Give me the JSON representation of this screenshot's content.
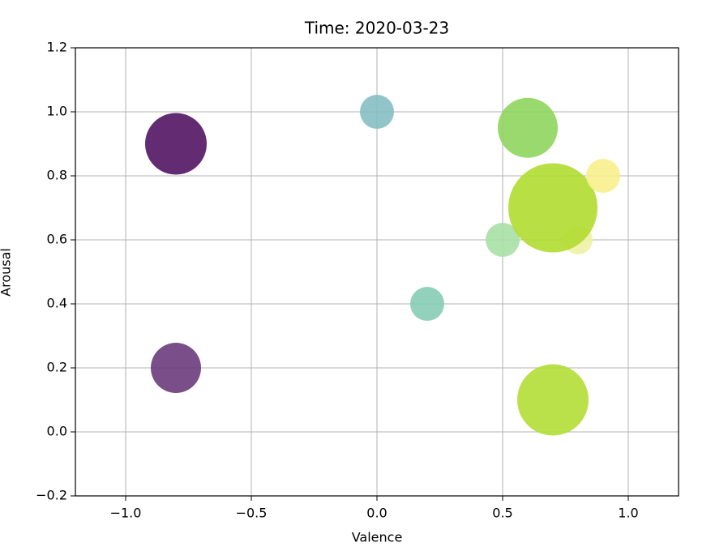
{
  "chart_data": {
    "type": "scatter",
    "title": "Time: 2020-03-23",
    "x_label": "Valence",
    "y_label": "Arousal",
    "x": [
      -0.8,
      -0.8,
      0.0,
      0.2,
      0.5,
      0.6,
      0.8,
      0.7,
      0.9,
      0.7
    ],
    "values": [
      0.9,
      0.2,
      1.0,
      0.4,
      0.6,
      0.95,
      0.6,
      0.7,
      0.8,
      0.1
    ],
    "sizes": [
      1444,
      961,
      441,
      441,
      441,
      1369,
      324,
      3025,
      441,
      1936
    ],
    "colors": [
      "#521463",
      "#6c3c7c",
      "#86bfc4",
      "#86cdb6",
      "#a9e0a6",
      "#8ed55e",
      "#eef2a4",
      "#b0dc30",
      "#f8ef8c",
      "#b2dd36"
    ],
    "xlim": [
      -1.2,
      1.2
    ],
    "xticks": [
      {
        "value": -1.0,
        "label": "−1.0"
      },
      {
        "value": -0.5,
        "label": "−0.5"
      },
      {
        "value": 0.0,
        "label": "0.0"
      },
      {
        "value": 0.5,
        "label": "0.5"
      },
      {
        "value": 1.0,
        "label": "1.0"
      }
    ],
    "ylim": [
      -0.2,
      1.2
    ],
    "yticks": [
      {
        "value": -0.2,
        "label": "−0.2"
      },
      {
        "value": 0.0,
        "label": "0.0"
      },
      {
        "value": 0.2,
        "label": "0.2"
      },
      {
        "value": 0.4,
        "label": "0.4"
      },
      {
        "value": 0.6,
        "label": "0.6"
      },
      {
        "value": 0.8,
        "label": "0.8"
      },
      {
        "value": 1.0,
        "label": "1.0"
      },
      {
        "value": 1.2,
        "label": "1.2"
      }
    ],
    "grid": true
  }
}
